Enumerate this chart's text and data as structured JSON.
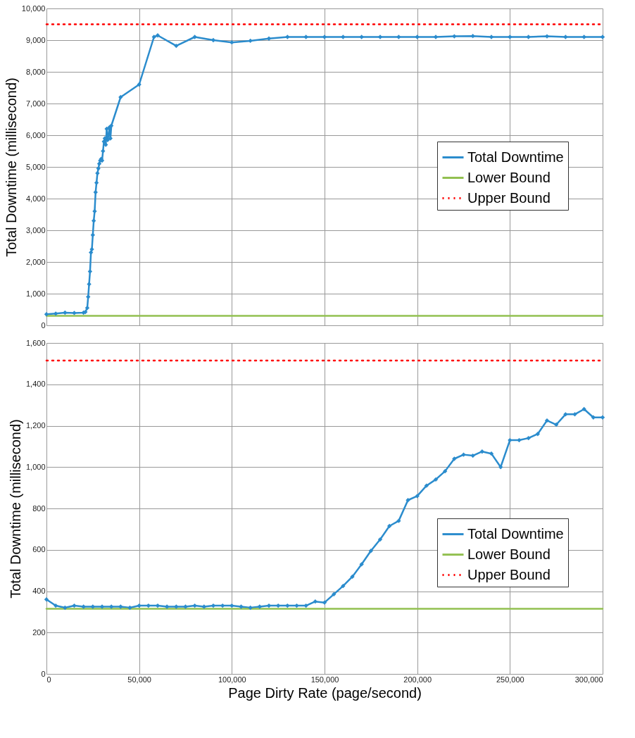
{
  "chart_data": [
    {
      "type": "line",
      "ylabel": "Total Downtime (millisecond)",
      "xlim": [
        0,
        300000
      ],
      "xticks": [
        0,
        50000,
        100000,
        150000,
        200000,
        250000,
        300000
      ],
      "ylim": [
        0,
        10000
      ],
      "yticks": [
        0,
        {
          "value": 1000,
          "label": "1,000"
        },
        {
          "value": 2000,
          "label": "2,000"
        },
        {
          "value": 3000,
          "label": "3,000"
        },
        {
          "value": 4000,
          "label": "4,000"
        },
        {
          "value": 5000,
          "label": "5,000"
        },
        {
          "value": 6000,
          "label": "6,000"
        },
        {
          "value": 7000,
          "label": "7,000"
        },
        {
          "value": 8000,
          "label": "8,000"
        },
        {
          "value": 9000,
          "label": "9,000"
        },
        {
          "value": 10000,
          "label": "10,000"
        }
      ],
      "grid": true,
      "legend": "right",
      "tick_labels": "y",
      "series": [
        {
          "name": "Total Downtime",
          "color": "#2b8ccd",
          "marker": "diamond",
          "line_style": "solid",
          "x": [
            0,
            5000,
            10000,
            15000,
            20000,
            21000,
            22000,
            22500,
            23000,
            23500,
            24000,
            24500,
            25000,
            25500,
            26000,
            26500,
            27000,
            27500,
            28000,
            28500,
            29000,
            29500,
            30000,
            30500,
            31000,
            31500,
            32000,
            32500,
            33000,
            33500,
            34000,
            34500,
            35000,
            40000,
            50000,
            58000,
            60000,
            70000,
            80000,
            90000,
            100000,
            110000,
            120000,
            130000,
            140000,
            150000,
            160000,
            170000,
            180000,
            190000,
            200000,
            210000,
            220000,
            230000,
            240000,
            250000,
            260000,
            270000,
            280000,
            290000,
            300000
          ],
          "values": [
            350,
            370,
            400,
            390,
            400,
            420,
            550,
            900,
            1300,
            1700,
            2300,
            2400,
            2850,
            3300,
            3600,
            4200,
            4500,
            4800,
            4950,
            5100,
            5200,
            5250,
            5200,
            5500,
            5800,
            5900,
            5700,
            6200,
            5850,
            6000,
            6250,
            5900,
            6300,
            7200,
            7600,
            9100,
            9150,
            8820,
            9100,
            9000,
            8930,
            8980,
            9050,
            9100,
            9100,
            9100,
            9100,
            9100,
            9100,
            9100,
            9100,
            9100,
            9120,
            9130,
            9100,
            9100,
            9100,
            9120,
            9100,
            9100,
            9100
          ]
        },
        {
          "name": "Lower Bound",
          "color": "#92c050",
          "marker": "none",
          "line_style": "solid",
          "x": [
            0,
            300000
          ],
          "values": [
            300,
            300
          ]
        },
        {
          "name": "Upper Bound",
          "color": "#ff0000",
          "marker": "none",
          "line_style": "dotted",
          "x": [
            0,
            300000
          ],
          "values": [
            9500,
            9500
          ]
        }
      ]
    },
    {
      "type": "line",
      "xlabel": "Page Dirty Rate (page/second)",
      "ylabel": "Total Downtime (millisecond)",
      "xlim": [
        0,
        300000
      ],
      "xticks": [
        0,
        {
          "value": 50000,
          "label": "50,000"
        },
        {
          "value": 100000,
          "label": "100,000"
        },
        {
          "value": 150000,
          "label": "150,000"
        },
        {
          "value": 200000,
          "label": "200,000"
        },
        {
          "value": 250000,
          "label": "250,000"
        },
        {
          "value": 300000,
          "label": "300,000"
        }
      ],
      "ylim": [
        0,
        1600
      ],
      "yticks": [
        0,
        200,
        400,
        600,
        800,
        {
          "value": 1000,
          "label": "1,000"
        },
        {
          "value": 1200,
          "label": "1,200"
        },
        {
          "value": 1400,
          "label": "1,400"
        },
        {
          "value": 1600,
          "label": "1,600"
        }
      ],
      "grid": true,
      "legend": "bottom right",
      "series": [
        {
          "name": "Total Downtime",
          "color": "#2b8ccd",
          "marker": "diamond",
          "line_style": "solid",
          "x": [
            0,
            5000,
            10000,
            15000,
            20000,
            25000,
            30000,
            35000,
            40000,
            45000,
            50000,
            55000,
            60000,
            65000,
            70000,
            75000,
            80000,
            85000,
            90000,
            95000,
            100000,
            105000,
            110000,
            115000,
            120000,
            125000,
            130000,
            135000,
            140000,
            145000,
            150000,
            155000,
            160000,
            165000,
            170000,
            175000,
            180000,
            185000,
            190000,
            195000,
            200000,
            205000,
            210000,
            215000,
            220000,
            225000,
            230000,
            235000,
            240000,
            245000,
            250000,
            255000,
            260000,
            265000,
            270000,
            275000,
            280000,
            285000,
            290000,
            295000,
            300000
          ],
          "values": [
            360,
            330,
            320,
            330,
            325,
            325,
            325,
            325,
            325,
            320,
            330,
            330,
            330,
            325,
            325,
            325,
            330,
            325,
            330,
            330,
            330,
            325,
            320,
            325,
            330,
            330,
            330,
            330,
            330,
            350,
            345,
            385,
            425,
            470,
            530,
            595,
            650,
            715,
            740,
            840,
            860,
            910,
            940,
            980,
            1040,
            1060,
            1055,
            1075,
            1065,
            1000,
            1130,
            1130,
            1140,
            1160,
            1225,
            1205,
            1255,
            1255,
            1280,
            1240,
            1240
          ]
        },
        {
          "name": "Lower Bound",
          "color": "#92c050",
          "marker": "none",
          "line_style": "solid",
          "x": [
            0,
            300000
          ],
          "values": [
            315,
            315
          ]
        },
        {
          "name": "Upper Bound",
          "color": "#ff0000",
          "marker": "none",
          "line_style": "dotted",
          "x": [
            0,
            300000
          ],
          "values": [
            1515,
            1515
          ]
        }
      ]
    }
  ]
}
